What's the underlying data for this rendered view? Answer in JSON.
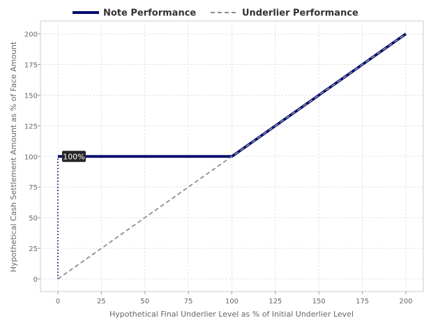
{
  "chart_data": {
    "type": "line",
    "title": "",
    "xlabel": "Hypothetical Final Underlier Level as % of Initial Underlier Level",
    "ylabel": "Hypothetical Cash Settlement Amount as % of Face Amount",
    "xlim": [
      -10,
      210
    ],
    "ylim": [
      -10,
      210
    ],
    "xticks": [
      0,
      25,
      50,
      75,
      100,
      125,
      150,
      175,
      200
    ],
    "yticks": [
      0,
      25,
      50,
      75,
      100,
      125,
      150,
      175,
      200
    ],
    "grid": true,
    "legend": "top-center",
    "series": [
      {
        "name": "Note Performance",
        "color": "#000a6e",
        "style": "solid",
        "x": [
          0,
          100,
          200
        ],
        "y": [
          100,
          100,
          200
        ]
      },
      {
        "name": "Underlier Performance",
        "color": "#8c8c99",
        "style": "dashed",
        "x": [
          0,
          200
        ],
        "y": [
          0,
          200
        ]
      }
    ],
    "reference_lines": [
      {
        "color": "#000a6e",
        "style": "dotted",
        "x": [
          0,
          0
        ],
        "y": [
          0,
          100
        ]
      }
    ],
    "annotations": [
      {
        "text": "100%",
        "x": 0,
        "y": 100
      }
    ]
  }
}
